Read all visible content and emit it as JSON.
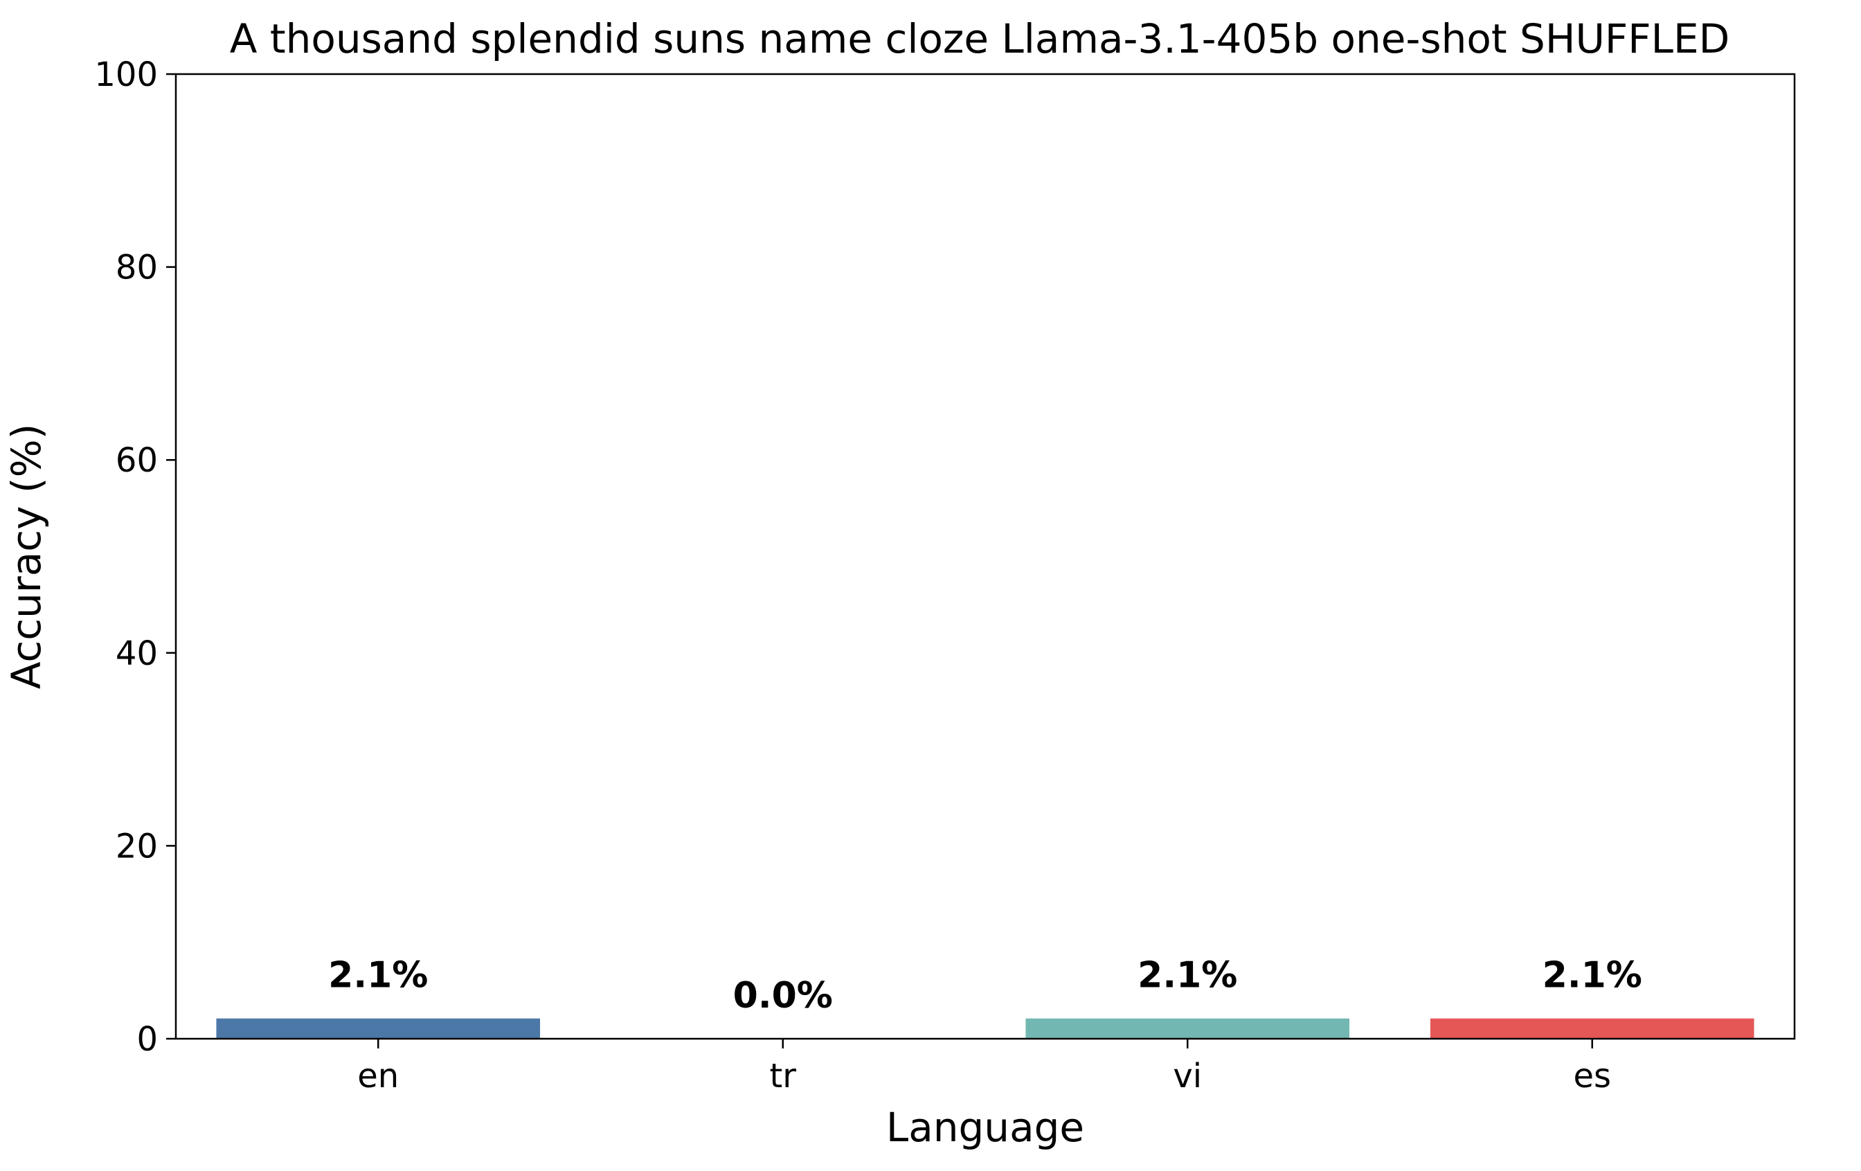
{
  "chart_data": {
    "type": "bar",
    "title": "A thousand splendid suns name cloze Llama-3.1-405b one-shot SHUFFLED",
    "xlabel": "Language",
    "ylabel": "Accuracy (%)",
    "categories": [
      "en",
      "tr",
      "vi",
      "es"
    ],
    "values": [
      2.1,
      0.0,
      2.1,
      2.1
    ],
    "value_labels": [
      "2.1%",
      "0.0%",
      "2.1%",
      "2.1%"
    ],
    "colors": [
      "#4c78a8",
      "#f58518",
      "#72b7b2",
      "#e45756"
    ],
    "ylim": [
      0,
      100
    ],
    "yticks": [
      0,
      20,
      40,
      60,
      80,
      100
    ],
    "grid": false,
    "legend": "none"
  }
}
